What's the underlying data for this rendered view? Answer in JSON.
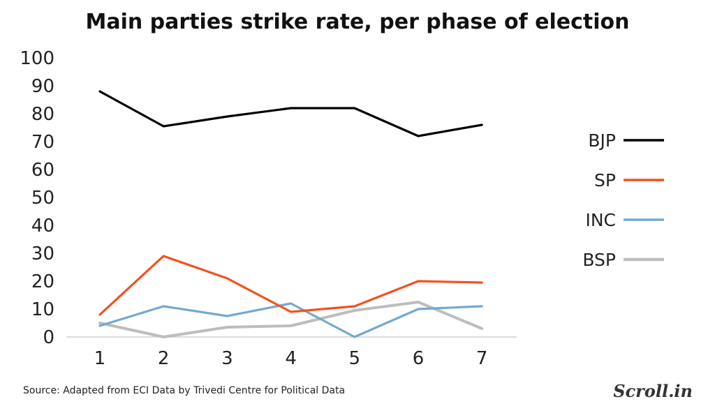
{
  "title": "Main parties strike rate, per phase of election",
  "source": "Source: Adapted from ECI Data by Trivedi Centre for Political Data",
  "logo": "Scroll.in",
  "chart_data": {
    "type": "line",
    "title": "Main parties strike rate, per phase of election",
    "xlabel": "",
    "ylabel": "",
    "x": [
      1,
      2,
      3,
      4,
      5,
      6,
      7
    ],
    "ylim": [
      0,
      100
    ],
    "yticks": [
      0,
      10,
      20,
      30,
      40,
      50,
      60,
      70,
      80,
      90,
      100
    ],
    "grid": false,
    "legend_position": "right",
    "series": [
      {
        "name": "BJP",
        "color": "#000000",
        "values": [
          88,
          75.5,
          79,
          82,
          82,
          72,
          76
        ]
      },
      {
        "name": "SP",
        "color": "#f4511e",
        "values": [
          8,
          29,
          21,
          9,
          11,
          20,
          19.5
        ]
      },
      {
        "name": "INC",
        "color": "#74a9cf",
        "values": [
          4,
          11,
          7.5,
          12,
          0,
          10,
          11
        ]
      },
      {
        "name": "BSP",
        "color": "#bdbdbd",
        "values": [
          5,
          0,
          3.5,
          4,
          9.5,
          12.5,
          3
        ]
      }
    ]
  }
}
